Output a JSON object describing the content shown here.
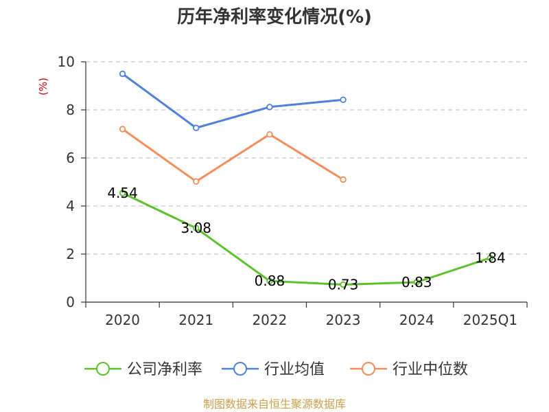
{
  "title": "历年净利率变化情况(%)",
  "source": "制图数据来自恒生聚源数据库",
  "colors": {
    "company": "#5cc22a",
    "industry_avg": "#4f80dc",
    "industry_median": "#f58d5b",
    "grid": "#c8c8c8",
    "axis": "#333333",
    "unit": "#cc0000",
    "source": "#c8a04a"
  },
  "chart_data": {
    "type": "line",
    "title": "历年净利率变化情况(%)",
    "ylabel": "(%)",
    "ylim": [
      0,
      10
    ],
    "yticks": [
      0,
      2,
      4,
      6,
      8,
      10
    ],
    "grid": true,
    "legend_position": "bottom",
    "categories": [
      "2020",
      "2021",
      "2022",
      "2023",
      "2024",
      "2025Q1"
    ],
    "series": [
      {
        "name": "公司净利率",
        "color": "#5cc22a",
        "values": [
          4.54,
          3.08,
          0.88,
          0.73,
          0.83,
          1.84
        ],
        "labels": [
          "4.54",
          "3.08",
          "0.88",
          "0.73",
          "0.83",
          "1.84"
        ],
        "show_labels": true
      },
      {
        "name": "行业均值",
        "color": "#4f80dc",
        "values": [
          9.5,
          7.25,
          8.12,
          8.42,
          null,
          null
        ],
        "show_labels": false
      },
      {
        "name": "行业中位数",
        "color": "#f58d5b",
        "values": [
          7.2,
          5.02,
          6.98,
          5.1,
          null,
          null
        ],
        "show_labels": false
      }
    ]
  }
}
